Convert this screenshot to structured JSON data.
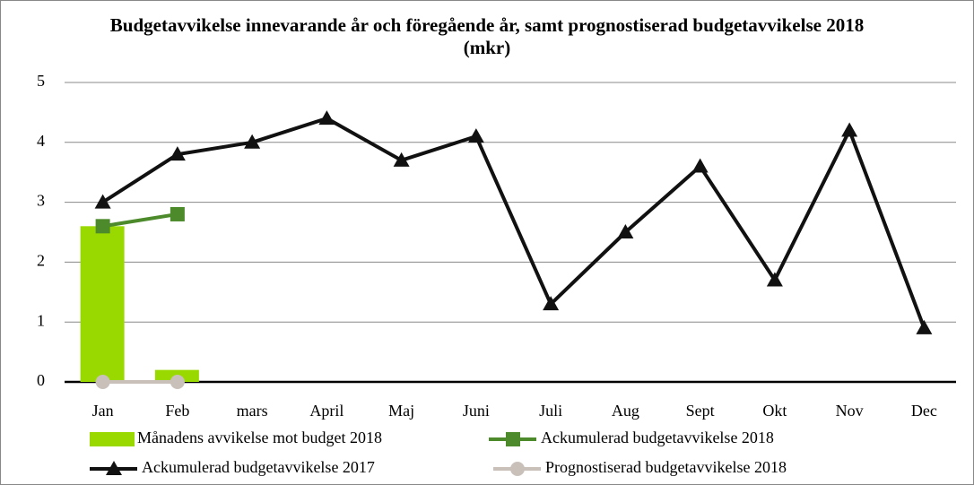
{
  "chart_data": {
    "type": "combo",
    "title": "Budgetavvikelse innevarande år och föregående år, samt prognostiserad budgetavvikelse 2018 (mkr)",
    "categories": [
      "Jan",
      "Feb",
      "mars",
      "April",
      "Maj",
      "Juni",
      "Juli",
      "Aug",
      "Sept",
      "Okt",
      "Nov",
      "Dec"
    ],
    "series": [
      {
        "name": "Månadens avvikelse mot budget 2018",
        "type": "bar",
        "color": "#99d900",
        "values": [
          2.6,
          0.2,
          null,
          null,
          null,
          null,
          null,
          null,
          null,
          null,
          null,
          null
        ]
      },
      {
        "name": "Ackumulerad budgetavvikelse 2018",
        "type": "line",
        "marker": "square",
        "color": "#4c8a2b",
        "values": [
          2.6,
          2.8,
          null,
          null,
          null,
          null,
          null,
          null,
          null,
          null,
          null,
          null
        ]
      },
      {
        "name": "Ackumulerad budgetavvikelse 2017",
        "type": "line",
        "marker": "triangle",
        "color": "#111111",
        "values": [
          3,
          3.8,
          4,
          4.4,
          3.7,
          4.1,
          1.3,
          2.5,
          3.6,
          1.7,
          4.2,
          0.9
        ]
      },
      {
        "name": "Prognostiserad budgetavvikelse 2018",
        "type": "line",
        "marker": "circle",
        "color": "#c9c1b9",
        "values": [
          0,
          0,
          null,
          null,
          null,
          null,
          null,
          null,
          null,
          null,
          null,
          null
        ]
      }
    ],
    "ylim": [
      0,
      5
    ],
    "yticks": [
      0,
      1,
      2,
      3,
      4,
      5
    ],
    "grid": true,
    "legend": "bottom"
  }
}
